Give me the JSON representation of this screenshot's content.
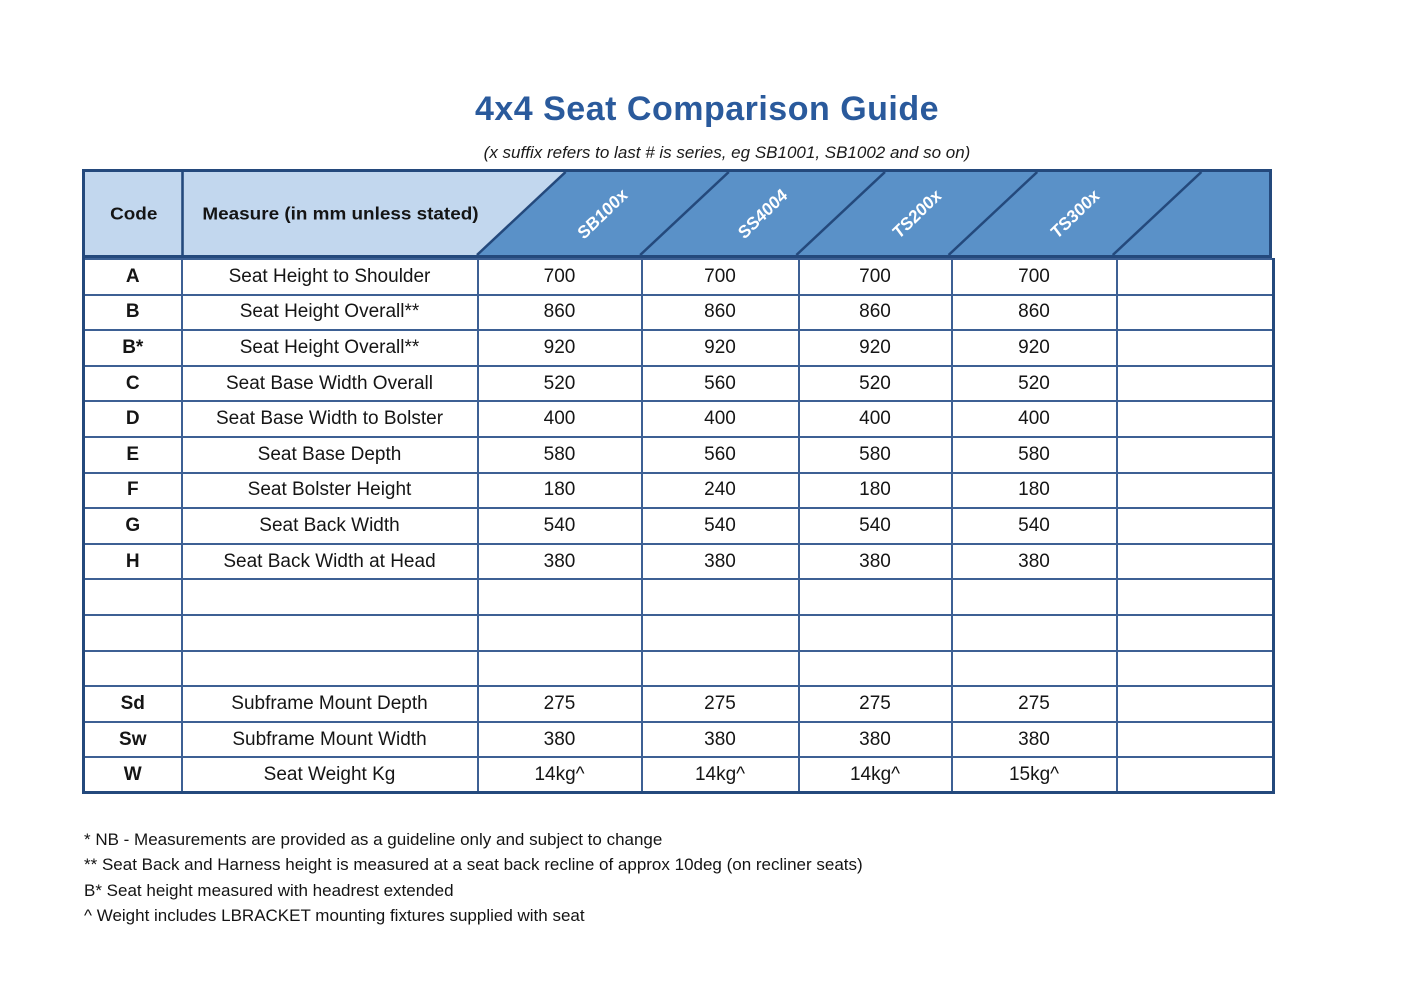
{
  "page": {
    "title": "4x4 Seat Comparison Guide",
    "subtitle": "(x suffix refers to last # is series, eg SB1001, SB1002 and so on)"
  },
  "table": {
    "header": {
      "code_label": "Code",
      "measure_label": "Measure (in mm unless stated)",
      "products": [
        "SB100x",
        "SS4004",
        "TS200x",
        "TS300x",
        ""
      ]
    },
    "rows": [
      {
        "code": "A",
        "measure": "Seat Height to Shoulder",
        "values": [
          "700",
          "700",
          "700",
          "700",
          ""
        ]
      },
      {
        "code": "B",
        "measure": "Seat Height Overall**",
        "values": [
          "860",
          "860",
          "860",
          "860",
          ""
        ]
      },
      {
        "code": "B*",
        "measure": "Seat Height Overall**",
        "values": [
          "920",
          "920",
          "920",
          "920",
          ""
        ]
      },
      {
        "code": "C",
        "measure": "Seat Base Width Overall",
        "values": [
          "520",
          "560",
          "520",
          "520",
          ""
        ]
      },
      {
        "code": "D",
        "measure": "Seat Base Width to Bolster",
        "values": [
          "400",
          "400",
          "400",
          "400",
          ""
        ]
      },
      {
        "code": "E",
        "measure": "Seat Base Depth",
        "values": [
          "580",
          "560",
          "580",
          "580",
          ""
        ]
      },
      {
        "code": "F",
        "measure": "Seat Bolster Height",
        "values": [
          "180",
          "240",
          "180",
          "180",
          ""
        ]
      },
      {
        "code": "G",
        "measure": "Seat Back Width",
        "values": [
          "540",
          "540",
          "540",
          "540",
          ""
        ]
      },
      {
        "code": "H",
        "measure": "Seat Back Width at Head",
        "values": [
          "380",
          "380",
          "380",
          "380",
          ""
        ]
      },
      {
        "code": "",
        "measure": "",
        "values": [
          "",
          "",
          "",
          "",
          ""
        ]
      },
      {
        "code": "",
        "measure": "",
        "values": [
          "",
          "",
          "",
          "",
          ""
        ]
      },
      {
        "code": "",
        "measure": "",
        "values": [
          "",
          "",
          "",
          "",
          ""
        ]
      },
      {
        "code": "Sd",
        "measure": "Subframe Mount Depth",
        "values": [
          "275",
          "275",
          "275",
          "275",
          ""
        ]
      },
      {
        "code": "Sw",
        "measure": "Subframe Mount Width",
        "values": [
          "380",
          "380",
          "380",
          "380",
          ""
        ]
      },
      {
        "code": "W",
        "measure": "Seat Weight Kg",
        "values": [
          "14kg^",
          "14kg^",
          "14kg^",
          "15kg^",
          ""
        ]
      }
    ]
  },
  "footnotes": [
    "* NB - Measurements are provided as a guideline only and subject to change",
    "** Seat Back and Harness height is measured at a seat back recline of approx 10deg (on recliner seats)",
    "B* Seat height measured with headrest extended",
    "^ Weight includes LBRACKET mounting fixtures supplied with seat"
  ],
  "colors": {
    "title": "#2a5a9c",
    "header_light": "#c2d7ee",
    "header_medium": "#5a91c8",
    "border_dark": "#24497c",
    "border_inner": "#3d6094",
    "header_text": "#ffffff",
    "body_text": "#151515"
  }
}
